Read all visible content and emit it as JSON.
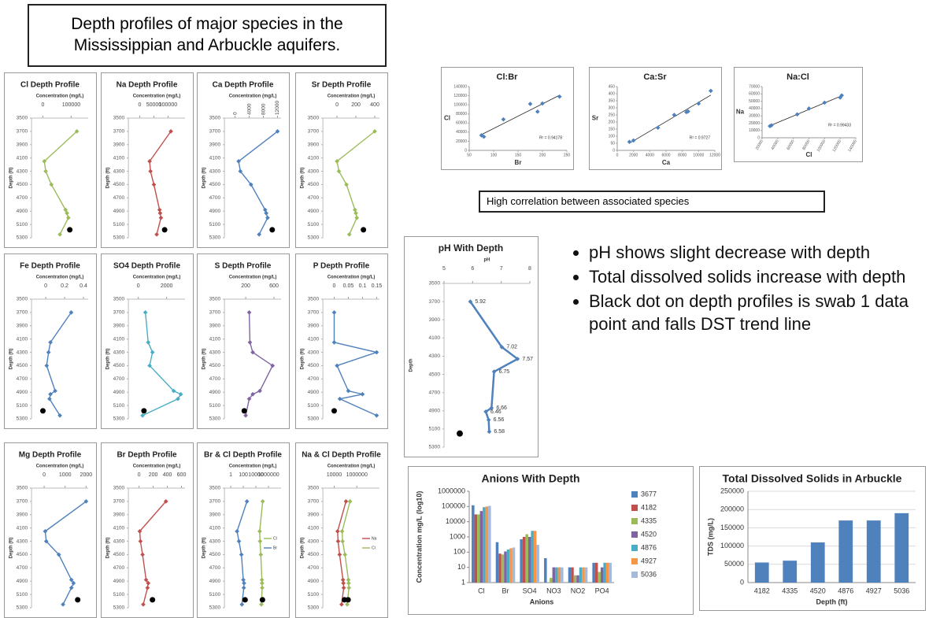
{
  "title": "Depth profiles of major species in the Mississippian and Arbuckle aquifers.",
  "caption": "High correlation  between associated species",
  "bullets": [
    "pH shows slight decrease with depth",
    "Total dissolved solids increase with depth",
    "Black dot on depth profiles is swab 1 data point and falls DST trend line"
  ],
  "chart_data": [
    {
      "type": "line",
      "title": "Cl Depth Profile",
      "xlabel": "Concentration (mg/L)",
      "ylabel": "Depth (ft)",
      "xlim": [
        -40000,
        160000
      ],
      "xticks": [
        0,
        100000
      ],
      "ylim": [
        5300,
        3500
      ],
      "yticks": [
        3500,
        3700,
        3900,
        4100,
        4300,
        4500,
        4700,
        4900,
        5100,
        5300
      ],
      "series": [
        {
          "color": "#9bbb59",
          "x": [
            120000,
            5000,
            10000,
            30000,
            80000,
            85000,
            90000,
            60000
          ],
          "values": [
            3700,
            4150,
            4300,
            4500,
            4880,
            4930,
            5000,
            5250
          ]
        }
      ],
      "swab": [
        {
          "x": 95000,
          "y": 5180
        }
      ]
    },
    {
      "type": "line",
      "title": "Na Depth Profile",
      "xlabel": "Concentration (mg/L)",
      "ylabel": "Depth (ft)",
      "xlim": [
        -40000,
        160000
      ],
      "xticks": [
        0,
        50000,
        100000
      ],
      "ylim": [
        5300,
        3500
      ],
      "yticks": [
        3500,
        3700,
        3900,
        4100,
        4300,
        4500,
        4700,
        4900,
        5100,
        5300
      ],
      "series": [
        {
          "color": "#c0504d",
          "x": [
            110000,
            35000,
            38000,
            50000,
            70000,
            72000,
            75000,
            60000
          ],
          "values": [
            3700,
            4150,
            4300,
            4500,
            4880,
            4930,
            5000,
            5250
          ]
        }
      ],
      "swab": [
        {
          "x": 88000,
          "y": 5180
        }
      ]
    },
    {
      "type": "line",
      "title": "Ca Depth Profile",
      "xlabel": "Concentration (mg/L)",
      "ylabel": "Depth (ft)",
      "xlim": [
        -3000,
        13000
      ],
      "xticks": [
        0,
        4000,
        8000,
        12000
      ],
      "rotate_xticks": true,
      "ylim": [
        5300,
        3500
      ],
      "yticks": [
        3500,
        3700,
        3900,
        4100,
        4300,
        4500,
        4700,
        4900,
        5100,
        5300
      ],
      "series": [
        {
          "color": "#4f81bd",
          "x": [
            12000,
            1000,
            1500,
            4500,
            8500,
            8800,
            9200,
            6800
          ],
          "values": [
            3700,
            4150,
            4300,
            4500,
            4880,
            4930,
            5000,
            5250
          ]
        }
      ],
      "swab": [
        {
          "x": 10500,
          "y": 5180
        }
      ]
    },
    {
      "type": "line",
      "title": "Sr Depth Profile",
      "xlabel": "Concentration (mg/L)",
      "ylabel": "Depth (ft)",
      "xlim": [
        -150,
        450
      ],
      "xticks": [
        0,
        200,
        400
      ],
      "ylim": [
        5300,
        3500
      ],
      "yticks": [
        3500,
        3700,
        3900,
        4100,
        4300,
        4500,
        4700,
        4900,
        5100,
        5300
      ],
      "series": [
        {
          "color": "#9bbb59",
          "x": [
            400,
            0,
            20,
            100,
            190,
            200,
            210,
            130
          ],
          "values": [
            3700,
            4150,
            4300,
            4500,
            4880,
            4930,
            5000,
            5250
          ]
        }
      ],
      "swab": [
        {
          "x": 280,
          "y": 5180
        }
      ]
    },
    {
      "type": "line",
      "title": "Fe Depth Profile",
      "xlabel": "Concentration (mg/L)",
      "ylabel": "Depth (ft)",
      "xlim": [
        -0.15,
        0.45
      ],
      "xticks": [
        0,
        0.2,
        0.4
      ],
      "ylim": [
        5300,
        3500
      ],
      "yticks": [
        3500,
        3700,
        3900,
        4100,
        4300,
        4500,
        4700,
        4900,
        5100,
        5300
      ],
      "series": [
        {
          "color": "#4f81bd",
          "x": [
            0.27,
            0.05,
            0.03,
            0.01,
            0.1,
            0.05,
            0.04,
            0.15
          ],
          "values": [
            3700,
            4150,
            4300,
            4500,
            4880,
            4930,
            5000,
            5250
          ]
        }
      ],
      "swab": [
        {
          "x": -0.03,
          "y": 5180
        }
      ]
    },
    {
      "type": "line",
      "title": "SO4 Depth Profile",
      "xlabel": "Concentration (mg/L)",
      "ylabel": "Depth (ft)",
      "xlim": [
        -700,
        3300
      ],
      "xticks": [
        0,
        2000
      ],
      "ylim": [
        5300,
        3500
      ],
      "yticks": [
        3500,
        3700,
        3900,
        4100,
        4300,
        4500,
        4700,
        4900,
        5100,
        5300
      ],
      "series": [
        {
          "color": "#4bacc6",
          "x": [
            500,
            700,
            1000,
            800,
            2500,
            3000,
            2800,
            300
          ],
          "values": [
            3700,
            4150,
            4300,
            4500,
            4880,
            4930,
            5000,
            5250
          ]
        }
      ],
      "swab": [
        {
          "x": 400,
          "y": 5180
        }
      ]
    },
    {
      "type": "line",
      "title": "S Depth Profile",
      "xlabel": "Concentration (mg/L)",
      "ylabel": "Depth (ft)",
      "xlim": [
        -100,
        700
      ],
      "xticks": [
        200,
        600
      ],
      "ylim": [
        5300,
        3500
      ],
      "yticks": [
        3500,
        3700,
        3900,
        4100,
        4300,
        4500,
        4700,
        4900,
        5100,
        5300
      ],
      "series": [
        {
          "color": "#8064a2",
          "x": [
            250,
            260,
            300,
            580,
            400,
            300,
            250,
            200
          ],
          "values": [
            3700,
            4150,
            4300,
            4500,
            4880,
            4930,
            5000,
            5250
          ]
        }
      ],
      "swab": [
        {
          "x": 180,
          "y": 5180
        }
      ]
    },
    {
      "type": "line",
      "title": "P Depth Profile",
      "xlabel": "Concentration (mg/L)",
      "ylabel": "Depth (ft)",
      "xlim": [
        -0.04,
        0.16
      ],
      "xticks": [
        0,
        0.05,
        0.1,
        0.15
      ],
      "ylim": [
        5300,
        3500
      ],
      "yticks": [
        3500,
        3700,
        3900,
        4100,
        4300,
        4500,
        4700,
        4900,
        5100,
        5300
      ],
      "series": [
        {
          "color": "#4f81bd",
          "x": [
            0,
            0,
            0.15,
            0.01,
            0.05,
            0.1,
            0.02,
            0.15
          ],
          "values": [
            3700,
            4150,
            4300,
            4500,
            4880,
            4930,
            5000,
            5250
          ]
        }
      ],
      "swab": [
        {
          "x": 0,
          "y": 5180
        }
      ]
    },
    {
      "type": "line",
      "title": "Mg Depth Profile",
      "xlabel": "Concentration (mg/L)",
      "ylabel": "Depth (ft)",
      "xlim": [
        -600,
        2100
      ],
      "xticks": [
        0,
        1000,
        2000
      ],
      "ylim": [
        5300,
        3500
      ],
      "yticks": [
        3500,
        3700,
        3900,
        4100,
        4300,
        4500,
        4700,
        4900,
        5100,
        5300
      ],
      "series": [
        {
          "color": "#4f81bd",
          "x": [
            2000,
            50,
            100,
            700,
            1300,
            1400,
            1300,
            900
          ],
          "values": [
            3700,
            4150,
            4300,
            4500,
            4880,
            4930,
            5000,
            5250
          ]
        }
      ],
      "swab": [
        {
          "x": 1600,
          "y": 5180
        }
      ]
    },
    {
      "type": "line",
      "title": "Br Depth Profile",
      "xlabel": "Concentration (mg/L)",
      "ylabel": "Depth (ft)",
      "xlim": [
        -150,
        650
      ],
      "xticks": [
        0,
        200,
        400,
        600
      ],
      "ylim": [
        5300,
        3500
      ],
      "yticks": [
        3500,
        3700,
        3900,
        4100,
        4300,
        4500,
        4700,
        4900,
        5100,
        5300
      ],
      "series": [
        {
          "color": "#c0504d",
          "x": [
            380,
            10,
            20,
            50,
            100,
            130,
            120,
            60
          ],
          "values": [
            3700,
            4150,
            4300,
            4500,
            4880,
            4930,
            5000,
            5250
          ]
        }
      ],
      "swab": [
        {
          "x": 190,
          "y": 5180
        }
      ]
    },
    {
      "type": "line",
      "title": "Br & Cl Depth Profile",
      "xlabel": "Concentration (mg/L)",
      "ylabel": "Depth (ft)",
      "log_x": true,
      "xlim": [
        0.1,
        100000000
      ],
      "xticks": [
        1,
        100,
        10000,
        1000000
      ],
      "ylim": [
        5300,
        3500
      ],
      "yticks": [
        3500,
        3700,
        3900,
        4100,
        4300,
        4500,
        4700,
        4900,
        5100,
        5300
      ],
      "series": [
        {
          "name": "Cl",
          "color": "#9bbb59",
          "x": [
            120000,
            40000,
            45000,
            60000,
            90000,
            95000,
            100000,
            75000
          ],
          "values": [
            3700,
            4150,
            4300,
            4500,
            4880,
            4930,
            5000,
            5250
          ]
        },
        {
          "name": "Br",
          "color": "#4f81bd",
          "x": [
            380,
            10,
            20,
            50,
            100,
            130,
            120,
            60
          ],
          "values": [
            3700,
            4150,
            4300,
            4500,
            4880,
            4930,
            5000,
            5250
          ]
        }
      ],
      "swab": [
        {
          "x": 110000,
          "y": 5180
        },
        {
          "x": 190,
          "y": 5180
        }
      ]
    },
    {
      "type": "line",
      "title": "Na & Cl Depth Profile",
      "xlabel": "Concentration (mg/L)",
      "ylabel": "Depth (ft)",
      "log_x": true,
      "xlim": [
        1000,
        100000000
      ],
      "xticks": [
        10000,
        1000000
      ],
      "ylim": [
        5300,
        3500
      ],
      "yticks": [
        3500,
        3700,
        3900,
        4100,
        4300,
        4500,
        4700,
        4900,
        5100,
        5300
      ],
      "series": [
        {
          "name": "Na",
          "color": "#c0504d",
          "x": [
            110000,
            20000,
            22000,
            30000,
            60000,
            65000,
            70000,
            45000
          ],
          "values": [
            3700,
            4150,
            4300,
            4500,
            4880,
            4930,
            5000,
            5250
          ]
        },
        {
          "name": "Cl",
          "color": "#9bbb59",
          "x": [
            250000,
            50000,
            55000,
            90000,
            180000,
            190000,
            200000,
            140000
          ],
          "values": [
            3700,
            4150,
            4300,
            4500,
            4880,
            4930,
            5000,
            5250
          ]
        }
      ],
      "swab": [
        {
          "x": 80000,
          "y": 5180
        },
        {
          "x": 170000,
          "y": 5180
        }
      ]
    },
    {
      "type": "scatter",
      "title": "Cl:Br",
      "xlabel": "Br",
      "ylabel": "Cl",
      "color": "#4f81bd",
      "annotation": "R² = 0.94178",
      "trendline": true,
      "xlim": [
        50,
        250
      ],
      "xticks": [
        50,
        100,
        150,
        200,
        250
      ],
      "ylim": [
        0,
        140000
      ],
      "yticks": [
        0,
        20000,
        40000,
        60000,
        80000,
        100000,
        120000,
        140000
      ],
      "x": [
        75,
        80,
        120,
        175,
        190,
        200,
        235
      ],
      "values": [
        33000,
        30000,
        68000,
        102000,
        85000,
        103000,
        118000
      ]
    },
    {
      "type": "scatter",
      "title": "Ca:Sr",
      "xlabel": "Ca",
      "ylabel": "Sr",
      "color": "#4f81bd",
      "annotation": "R² = 0.9727",
      "trendline": true,
      "xlim": [
        0,
        12000
      ],
      "xticks": [
        0,
        2000,
        4000,
        6000,
        8000,
        10000,
        12000
      ],
      "ylim": [
        0,
        450
      ],
      "yticks": [
        0,
        50,
        100,
        150,
        200,
        250,
        300,
        350,
        400,
        450
      ],
      "x": [
        1500,
        2000,
        5000,
        7000,
        8500,
        8700,
        10000,
        11500
      ],
      "values": [
        60,
        70,
        160,
        250,
        270,
        275,
        330,
        420
      ]
    },
    {
      "type": "scatter",
      "title": "Na:Cl",
      "xlabel": "Cl",
      "ylabel": "Na",
      "color": "#4f81bd",
      "annotation": "R² = 0.99433",
      "trendline": true,
      "rotate_xticks": true,
      "xlim": [
        20000,
        140000
      ],
      "xticks": [
        20000,
        40000,
        60000,
        80000,
        100000,
        120000,
        140000
      ],
      "ylim": [
        0,
        70000
      ],
      "yticks": [
        0,
        10000,
        20000,
        30000,
        40000,
        50000,
        60000,
        70000
      ],
      "x": [
        30000,
        32000,
        65000,
        80000,
        100000,
        120000,
        122000
      ],
      "values": [
        16000,
        17000,
        32000,
        40000,
        48000,
        55000,
        58000
      ]
    },
    {
      "type": "line",
      "title": "pH With Depth",
      "xlabel": "pH",
      "ylabel": "Depth",
      "data_labels": true,
      "xlim": [
        5,
        8
      ],
      "xticks": [
        5,
        6,
        7,
        8
      ],
      "ylim": [
        5300,
        3500
      ],
      "yticks": [
        3500,
        3700,
        3900,
        4100,
        4300,
        4500,
        4700,
        4900,
        5100,
        5300
      ],
      "series": [
        {
          "color": "#4f81bd",
          "x": [
            5.92,
            7.02,
            7.57,
            6.75,
            6.66,
            6.46,
            6.56,
            6.58
          ],
          "values": [
            3700,
            4200,
            4330,
            4470,
            4870,
            4910,
            5000,
            5130
          ]
        }
      ],
      "swab": [
        {
          "x": 5.55,
          "y": 5150
        }
      ]
    },
    {
      "type": "bar",
      "title": "Anions With Depth",
      "xlabel": "Anions",
      "ylabel": "Concentration mg/L (log10)",
      "log_y": true,
      "ylim": [
        1,
        1000000
      ],
      "yticks": [
        1,
        10,
        100,
        1000,
        10000,
        100000,
        1000000
      ],
      "categories": [
        "Cl",
        "Br",
        "SO4",
        "NO3",
        "NO2",
        "PO4"
      ],
      "series": [
        {
          "name": "3677",
          "color": "#4f81bd",
          "values": [
            120000,
            450,
            700,
            40,
            10,
            20
          ]
        },
        {
          "name": "4182",
          "color": "#c0504d",
          "values": [
            30000,
            80,
            1000,
            1,
            10,
            20
          ]
        },
        {
          "name": "4335",
          "color": "#9bbb59",
          "values": [
            30000,
            70,
            1500,
            2,
            3,
            5
          ]
        },
        {
          "name": "4520",
          "color": "#8064a2",
          "values": [
            50000,
            110,
            1000,
            10,
            3,
            10
          ]
        },
        {
          "name": "4876",
          "color": "#4bacc6",
          "values": [
            90000,
            150,
            2500,
            10,
            10,
            20
          ]
        },
        {
          "name": "4927",
          "color": "#f79646",
          "values": [
            100000,
            180,
            2500,
            10,
            10,
            20
          ]
        },
        {
          "name": "5036",
          "color": "#a5b9dc",
          "values": [
            110000,
            200,
            300,
            10,
            10,
            20
          ]
        }
      ]
    },
    {
      "type": "bar",
      "title": "Total Dissolved Solids in Arbuckle",
      "xlabel": "Depth (ft)",
      "ylabel": "TDS (mg/L)",
      "grid": true,
      "color": "#4f81bd",
      "ylim": [
        0,
        250000
      ],
      "yticks": [
        0,
        50000,
        100000,
        150000,
        200000,
        250000
      ],
      "categories": [
        "4182",
        "4335",
        "4520",
        "4876",
        "4927",
        "5036"
      ],
      "values": [
        55000,
        60000,
        110000,
        170000,
        170000,
        190000
      ]
    }
  ]
}
